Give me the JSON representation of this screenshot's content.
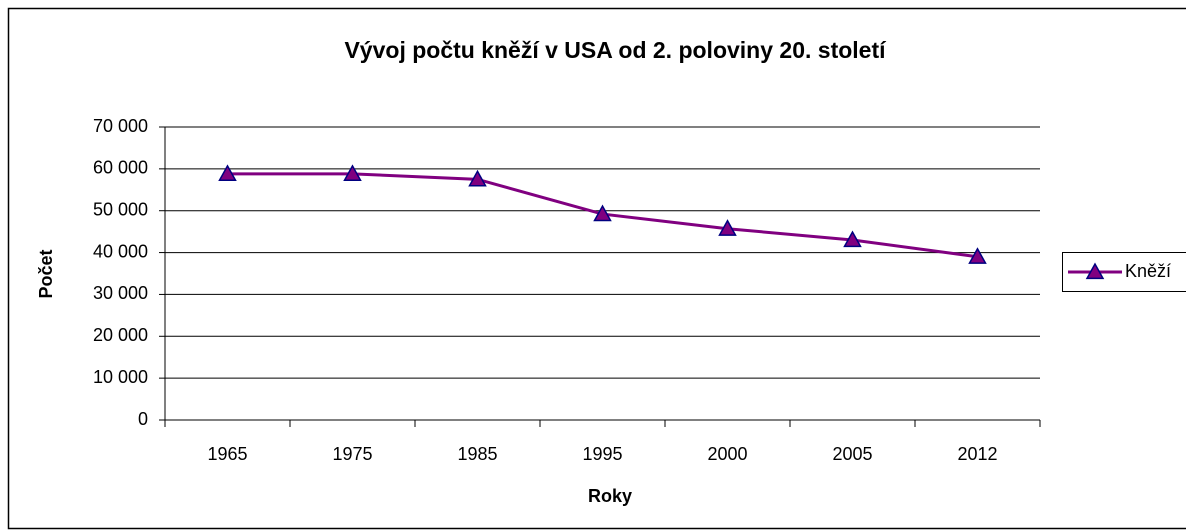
{
  "chart_data": {
    "type": "line",
    "title": "Vývoj počtu kněží v USA od 2. poloviny 20. století",
    "x_label": "Roky",
    "y_label": "Počet",
    "categories": [
      "1965",
      "1975",
      "1985",
      "1995",
      "2000",
      "2005",
      "2012"
    ],
    "series": [
      {
        "name": "Kněží",
        "color": "#800080",
        "marker_color": "#000080",
        "values": [
          58800,
          58800,
          57500,
          49200,
          45700,
          43000,
          39000
        ]
      }
    ],
    "ylim": [
      0,
      70000
    ],
    "yticks": [
      0,
      {
        "value": 10000,
        "label": "10 000"
      },
      {
        "value": 20000,
        "label": "20 000"
      },
      {
        "value": 30000,
        "label": "30 000"
      },
      {
        "value": 40000,
        "label": "40 000"
      },
      {
        "value": 50000,
        "label": "50 000"
      },
      {
        "value": 60000,
        "label": "60 000"
      },
      {
        "value": 70000,
        "label": "70 000"
      }
    ],
    "grid": true,
    "legend": "right"
  }
}
